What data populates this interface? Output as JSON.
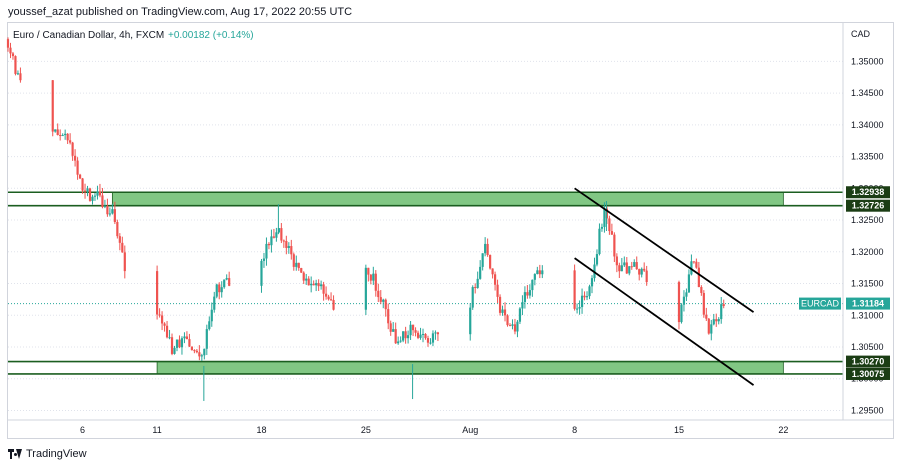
{
  "publisher_line": "youssef_azat published on TradingView.com, Aug 17, 2022 20:55 UTC",
  "footer_brand": "TradingView",
  "colors": {
    "up": "#26a69a",
    "down": "#ef5350",
    "zone_fill": "#81c784",
    "zone_border": "#1b5e20",
    "tag_dark": "#1b3d14",
    "symbol_tag": "#26a69a",
    "grid": "#e0e3eb",
    "trendline": "#000000"
  },
  "chart_data": {
    "type": "candlestick",
    "title": "Euro / Canadian Dollar, 4h, FXCM",
    "symbol": "EURCAD",
    "change": "+0.00182 (+0.14%)",
    "currency": "CAD",
    "ylim": [
      1.2935,
      1.3562
    ],
    "y_ticks": [
      "1.35000",
      "1.34500",
      "1.34000",
      "1.33500",
      "1.33000",
      "1.32500",
      "1.32000",
      "1.31500",
      "1.31000",
      "1.30500",
      "1.30000",
      "1.29500"
    ],
    "x_tick_labels": [
      "6",
      "11",
      "18",
      "25",
      "Aug",
      "8",
      "15",
      "22"
    ],
    "x_tick_dates": [
      "2022-07-06",
      "2022-07-11",
      "2022-07-18",
      "2022-07-25",
      "2022-08-01",
      "2022-08-08",
      "2022-08-15",
      "2022-08-22"
    ],
    "x_range": [
      "2022-07-01",
      "2022-08-26"
    ],
    "last_price": 1.31184,
    "last_price_label": "1.31184",
    "zones": [
      {
        "name": "resistance",
        "low": 1.32726,
        "high": 1.32938,
        "low_label": "1.32726",
        "high_label": "1.32938",
        "from": "2022-07-08",
        "to": "2022-08-22"
      },
      {
        "name": "support",
        "low": 1.30075,
        "high": 1.3027,
        "low_label": "1.30075",
        "high_label": "1.30270",
        "from": "2022-07-11",
        "to": "2022-08-22"
      }
    ],
    "trendlines": [
      {
        "from": {
          "date": "2022-08-08",
          "price": 1.33
        },
        "to": {
          "date": "2022-08-20",
          "price": 1.3105
        }
      },
      {
        "from": {
          "date": "2022-08-08",
          "price": 1.319
        },
        "to": {
          "date": "2022-08-20",
          "price": 1.299
        }
      }
    ],
    "candle_path": [
      [
        "2022-07-01",
        1.352
      ],
      [
        "2022-07-02",
        1.346
      ],
      [
        "2022-07-03",
        1.342
      ],
      [
        "2022-07-04",
        1.339
      ],
      [
        "2022-07-05",
        1.338
      ],
      [
        "2022-07-06",
        1.329
      ],
      [
        "2022-07-07",
        1.329
      ],
      [
        "2022-07-08",
        1.326
      ],
      [
        "2022-07-09",
        1.316
      ],
      [
        "2022-07-10",
        1.3185
      ],
      [
        "2022-07-11",
        1.311
      ],
      [
        "2022-07-12",
        1.305
      ],
      [
        "2022-07-13",
        1.306
      ],
      [
        "2022-07-14",
        1.3035
      ],
      [
        "2022-07-15",
        1.314
      ],
      [
        "2022-07-16",
        1.316
      ],
      [
        "2022-07-17",
        1.317
      ],
      [
        "2022-07-18",
        1.319
      ],
      [
        "2022-07-19",
        1.324
      ],
      [
        "2022-07-20",
        1.319
      ],
      [
        "2022-07-21",
        1.315
      ],
      [
        "2022-07-22",
        1.315
      ],
      [
        "2022-07-23",
        1.311
      ],
      [
        "2022-07-24",
        1.317
      ],
      [
        "2022-07-25",
        1.318
      ],
      [
        "2022-07-26",
        1.313
      ],
      [
        "2022-07-27",
        1.306
      ],
      [
        "2022-07-28",
        1.308
      ],
      [
        "2022-07-29",
        1.306
      ],
      [
        "2022-07-30",
        1.307
      ],
      [
        "2022-07-31",
        1.311
      ],
      [
        "2022-08-01",
        1.312
      ],
      [
        "2022-08-02",
        1.321
      ],
      [
        "2022-08-03",
        1.311
      ],
      [
        "2022-08-04",
        1.308
      ],
      [
        "2022-08-05",
        1.315
      ],
      [
        "2022-08-06",
        1.317
      ],
      [
        "2022-08-07",
        1.318
      ],
      [
        "2022-08-08",
        1.311
      ],
      [
        "2022-08-09",
        1.314
      ],
      [
        "2022-08-10",
        1.327
      ],
      [
        "2022-08-11",
        1.317
      ],
      [
        "2022-08-12",
        1.318
      ],
      [
        "2022-08-13",
        1.315
      ],
      [
        "2022-08-14",
        1.316
      ],
      [
        "2022-08-15",
        1.31
      ],
      [
        "2022-08-16",
        1.319
      ],
      [
        "2022-08-17",
        1.307
      ],
      [
        "2022-08-18",
        1.3118
      ]
    ],
    "wick_extremes": [
      {
        "date": "2022-07-14",
        "low": 1.2965
      },
      {
        "date": "2022-07-28",
        "low": 1.2968
      },
      {
        "date": "2022-07-19",
        "high": 1.3275
      },
      {
        "date": "2022-08-10",
        "high": 1.328
      }
    ]
  }
}
